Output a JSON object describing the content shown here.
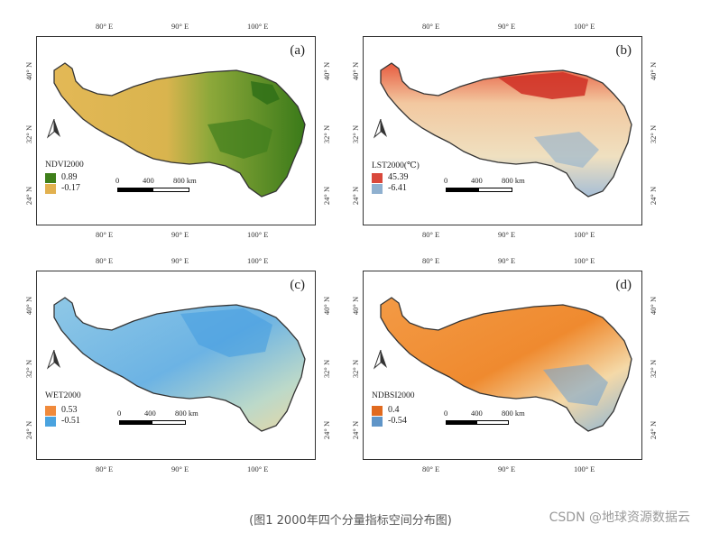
{
  "figure": {
    "caption": "(图1 2000年四个分量指标空间分布图)",
    "watermark": "CSDN @地球资源数据云"
  },
  "axes": {
    "lon_labels": [
      "80° E",
      "90° E",
      "100° E"
    ],
    "lat_labels": [
      "40° N",
      "32° N",
      "24° N"
    ]
  },
  "scale": {
    "n0": "0",
    "n400": "400",
    "n800": "800 km"
  },
  "panels": [
    {
      "label": "(a)",
      "legend_title": "NDVI2000",
      "max": "0.89",
      "min": "-0.17",
      "colors": {
        "high": "#3f7f1a",
        "low": "#e2b14f"
      }
    },
    {
      "label": "(b)",
      "legend_title": "LST2000(℃)",
      "max": "45.39",
      "min": "-6.41",
      "colors": {
        "high": "#d9483b",
        "low": "#8fb0cf"
      }
    },
    {
      "label": "(c)",
      "legend_title": "WET2000",
      "max": "0.53",
      "min": "-0.51",
      "colors": {
        "high": "#f08a3c",
        "low": "#4aa3df"
      }
    },
    {
      "label": "(d)",
      "legend_title": "NDBSI2000",
      "max": "0.4",
      "min": "-0.54",
      "colors": {
        "high": "#e06a1f",
        "low": "#5f95c8"
      }
    }
  ]
}
